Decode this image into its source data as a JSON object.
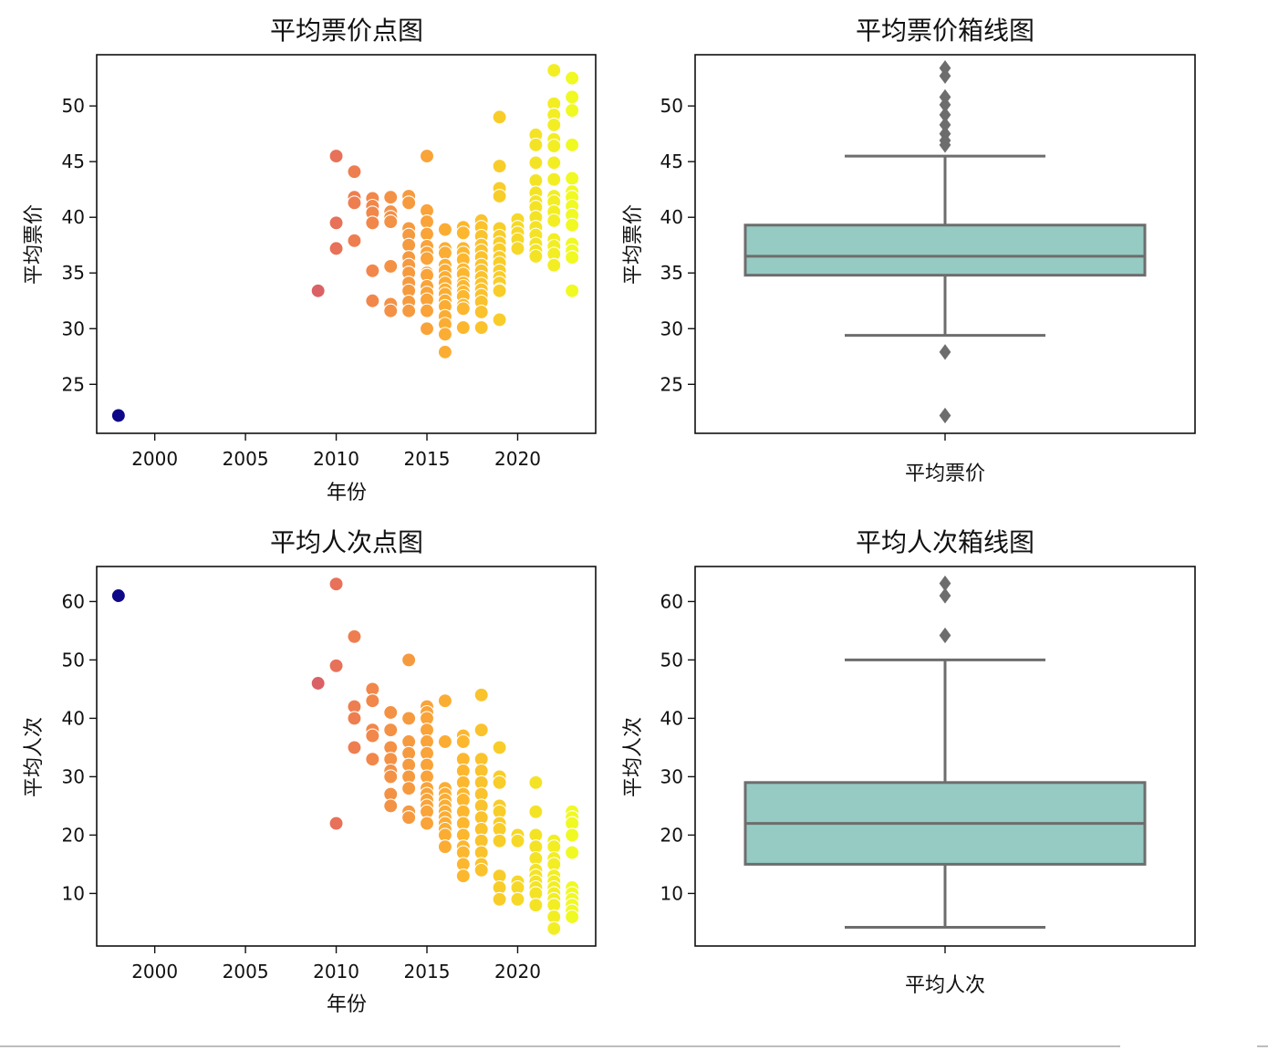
{
  "colors": {
    "box_fill": "#95cbc2",
    "box_line": "#6d6d6d",
    "flier": "#6d6d6d",
    "scatter_cmap": [
      "#0d0887",
      "#9c179e",
      "#ed7953",
      "#fdb42f",
      "#f0f921"
    ]
  },
  "chart_data": [
    {
      "id": "price-scatter",
      "type": "scatter",
      "title": "平均票价点图",
      "xlabel": "年份",
      "ylabel": "平均票价",
      "xlim": [
        1996.8,
        2024.3
      ],
      "ylim": [
        20.6,
        54.6
      ],
      "xticks": [
        2000,
        2005,
        2010,
        2015,
        2020
      ],
      "yticks": [
        25,
        30,
        35,
        40,
        45,
        50
      ],
      "hue": "year",
      "grid": false,
      "x": [
        1998,
        2009,
        2010,
        2010,
        2010,
        2011,
        2011,
        2011,
        2011,
        2012,
        2012,
        2012,
        2012,
        2012,
        2012,
        2013,
        2013,
        2013,
        2013,
        2013,
        2013,
        2013,
        2014,
        2014,
        2014,
        2014,
        2014,
        2014,
        2014,
        2014,
        2014,
        2014,
        2014,
        2014,
        2015,
        2015,
        2015,
        2015,
        2015,
        2015,
        2015,
        2015,
        2015,
        2015,
        2015,
        2015,
        2015,
        2015,
        2016,
        2016,
        2016,
        2016,
        2016,
        2016,
        2016,
        2016,
        2016,
        2016,
        2016,
        2016,
        2016,
        2016,
        2016,
        2017,
        2017,
        2017,
        2017,
        2017,
        2017,
        2017,
        2017,
        2017,
        2017,
        2017,
        2017,
        2017,
        2017,
        2018,
        2018,
        2018,
        2018,
        2018,
        2018,
        2018,
        2018,
        2018,
        2018,
        2018,
        2018,
        2018,
        2018,
        2018,
        2019,
        2019,
        2019,
        2019,
        2019,
        2019,
        2019,
        2019,
        2019,
        2019,
        2019,
        2019,
        2019,
        2019,
        2019,
        2019,
        2020,
        2020,
        2020,
        2020,
        2020,
        2021,
        2021,
        2021,
        2021,
        2021,
        2021,
        2021,
        2021,
        2021,
        2021,
        2021,
        2021,
        2021,
        2022,
        2022,
        2022,
        2022,
        2022,
        2022,
        2022,
        2022,
        2022,
        2022,
        2022,
        2022,
        2022,
        2022,
        2022,
        2022,
        2023,
        2023,
        2023,
        2023,
        2023,
        2023,
        2023,
        2023,
        2023,
        2023,
        2023,
        2023,
        2023,
        2023
      ],
      "y": [
        22.2,
        33.4,
        45.5,
        39.5,
        37.2,
        44.1,
        41.8,
        41.3,
        37.9,
        41.7,
        41.0,
        40.4,
        39.5,
        35.2,
        32.5,
        41.8,
        40.5,
        40.0,
        39.6,
        35.6,
        32.2,
        31.6,
        41.9,
        41.3,
        39.0,
        38.4,
        37.5,
        36.4,
        35.7,
        35.0,
        34.1,
        33.4,
        32.4,
        31.6,
        45.5,
        40.6,
        39.6,
        38.5,
        37.4,
        36.8,
        36.3,
        35.0,
        34.8,
        33.8,
        33.2,
        32.6,
        31.6,
        30.0,
        38.9,
        37.2,
        36.8,
        35.7,
        35.2,
        34.6,
        34.1,
        33.5,
        33.1,
        32.5,
        32.0,
        31.1,
        30.4,
        29.5,
        27.9,
        39.1,
        38.6,
        37.2,
        36.8,
        36.2,
        35.3,
        34.9,
        34.1,
        33.8,
        33.3,
        32.9,
        32.1,
        31.8,
        30.1,
        39.7,
        39.1,
        38.3,
        37.5,
        37.0,
        36.4,
        35.7,
        35.2,
        34.6,
        34.0,
        33.5,
        33.0,
        32.4,
        31.5,
        30.1,
        49.0,
        44.6,
        42.6,
        41.9,
        39.0,
        38.3,
        37.7,
        37.1,
        36.4,
        35.9,
        35.2,
        34.6,
        34.1,
        33.5,
        30.8,
        33.4,
        39.8,
        39.1,
        38.6,
        38.0,
        37.2,
        47.4,
        46.5,
        44.9,
        43.3,
        42.2,
        41.4,
        40.9,
        40.0,
        39.1,
        38.4,
        37.6,
        37.0,
        36.5,
        53.2,
        50.2,
        49.2,
        48.3,
        47.0,
        46.4,
        44.9,
        43.4,
        41.9,
        41.4,
        40.5,
        39.7,
        38.0,
        37.4,
        36.7,
        35.7,
        52.5,
        50.8,
        49.6,
        46.5,
        43.5,
        42.3,
        41.8,
        41.0,
        40.2,
        39.3,
        37.6,
        37.0,
        36.4,
        33.4
      ]
    },
    {
      "id": "price-box",
      "type": "box",
      "title": "平均票价箱线图",
      "xlabel": "平均票价",
      "ylabel": "平均票价",
      "ylim": [
        20.6,
        54.6
      ],
      "yticks": [
        25,
        30,
        35,
        40,
        45,
        50
      ],
      "grid": false,
      "whisker_low": 29.4,
      "q1": 34.8,
      "median": 36.5,
      "q3": 39.3,
      "whisker_high": 45.5,
      "outliers": [
        53.4,
        52.7,
        50.8,
        50.1,
        49.2,
        48.3,
        47.5,
        46.9,
        46.5,
        27.9,
        22.2
      ]
    },
    {
      "id": "visits-scatter",
      "type": "scatter",
      "title": "平均人次点图",
      "xlabel": "年份",
      "ylabel": "平均人次",
      "xlim": [
        1996.8,
        2024.3
      ],
      "ylim": [
        1,
        66
      ],
      "xticks": [
        2000,
        2005,
        2010,
        2015,
        2020
      ],
      "yticks": [
        10,
        20,
        30,
        40,
        50,
        60
      ],
      "hue": "year",
      "grid": false,
      "x": [
        1998,
        2009,
        2010,
        2010,
        2010,
        2011,
        2011,
        2011,
        2011,
        2012,
        2012,
        2012,
        2012,
        2012,
        2013,
        2013,
        2013,
        2013,
        2013,
        2013,
        2013,
        2013,
        2014,
        2014,
        2014,
        2014,
        2014,
        2014,
        2014,
        2014,
        2014,
        2015,
        2015,
        2015,
        2015,
        2015,
        2015,
        2015,
        2015,
        2015,
        2015,
        2015,
        2015,
        2015,
        2015,
        2016,
        2016,
        2016,
        2016,
        2016,
        2016,
        2016,
        2016,
        2016,
        2016,
        2016,
        2016,
        2017,
        2017,
        2017,
        2017,
        2017,
        2017,
        2017,
        2017,
        2017,
        2017,
        2017,
        2017,
        2017,
        2017,
        2018,
        2018,
        2018,
        2018,
        2018,
        2018,
        2018,
        2018,
        2018,
        2018,
        2018,
        2018,
        2018,
        2019,
        2019,
        2019,
        2019,
        2019,
        2019,
        2019,
        2019,
        2019,
        2019,
        2019,
        2020,
        2020,
        2020,
        2020,
        2020,
        2021,
        2021,
        2021,
        2021,
        2021,
        2021,
        2021,
        2021,
        2021,
        2021,
        2021,
        2022,
        2022,
        2022,
        2022,
        2022,
        2022,
        2022,
        2022,
        2022,
        2022,
        2022,
        2022,
        2023,
        2023,
        2023,
        2023,
        2023,
        2023,
        2023,
        2023,
        2023,
        2023,
        2023
      ],
      "y": [
        61,
        46,
        63,
        49,
        22,
        54,
        42,
        40,
        35,
        45,
        43,
        38,
        37,
        33,
        41,
        38,
        35,
        33,
        31,
        30,
        27,
        25,
        50,
        40,
        36,
        34,
        32,
        30,
        28,
        24,
        23,
        42,
        41,
        40,
        38,
        36,
        34,
        32,
        30,
        28,
        27,
        26,
        25,
        24,
        22,
        43,
        36,
        28,
        27,
        26,
        25,
        24,
        23,
        22,
        21,
        20,
        18,
        37,
        36,
        33,
        31,
        29,
        27,
        26,
        24,
        22,
        20,
        18,
        17,
        15,
        13,
        44,
        38,
        33,
        31,
        29,
        27,
        25,
        23,
        21,
        19,
        17,
        15,
        14,
        35,
        30,
        29,
        25,
        24,
        22,
        21,
        19,
        13,
        11,
        9,
        20,
        19,
        12,
        11,
        9,
        29,
        24,
        20,
        18,
        16,
        14,
        13,
        12,
        11,
        10,
        8,
        19,
        18,
        16,
        15,
        13,
        12,
        11,
        10,
        9,
        8,
        6,
        4,
        24,
        23,
        22,
        20,
        17,
        11,
        10,
        9,
        8,
        7,
        6
      ]
    },
    {
      "id": "visits-box",
      "type": "box",
      "title": "平均人次箱线图",
      "xlabel": "平均人次",
      "ylabel": "平均人次",
      "ylim": [
        1,
        66
      ],
      "yticks": [
        10,
        20,
        30,
        40,
        50,
        60
      ],
      "grid": false,
      "whisker_low": 4.2,
      "q1": 15,
      "median": 22,
      "q3": 29,
      "whisker_high": 50,
      "outliers": [
        63.1,
        61.0,
        54.2
      ]
    }
  ]
}
